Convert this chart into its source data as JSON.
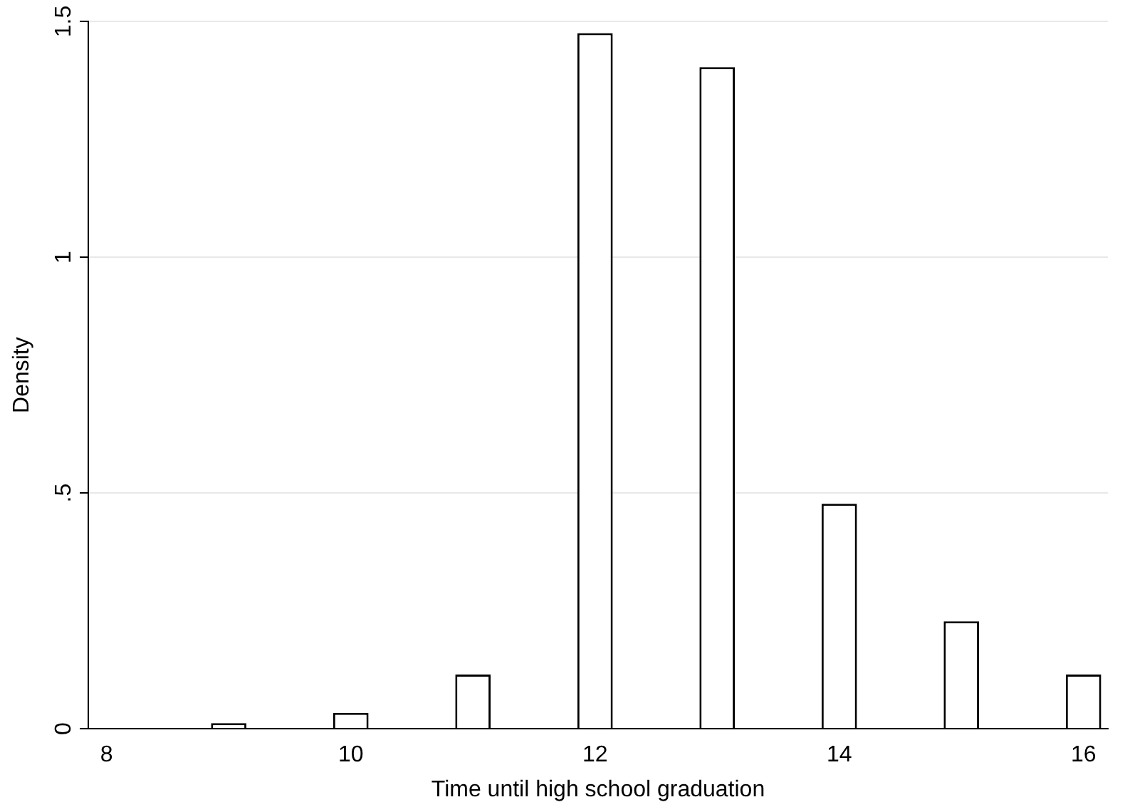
{
  "chart_data": {
    "type": "bar",
    "xlabel": "Time until high school graduation",
    "ylabel": "Density",
    "x": [
      9,
      10,
      11,
      12,
      13,
      14,
      15,
      16
    ],
    "values": [
      0.012,
      0.034,
      0.115,
      1.475,
      1.403,
      0.477,
      0.228,
      0.115
    ],
    "color": "#ffffff",
    "xlim": [
      7.85,
      16.2
    ],
    "xticks": [
      8,
      10,
      12,
      14,
      16
    ],
    "ylim": [
      0,
      1.5
    ],
    "yticks": [
      0,
      {
        "value": 0.5,
        "label": ".5"
      },
      1,
      1.5
    ],
    "grid": "y",
    "legend": false
  }
}
